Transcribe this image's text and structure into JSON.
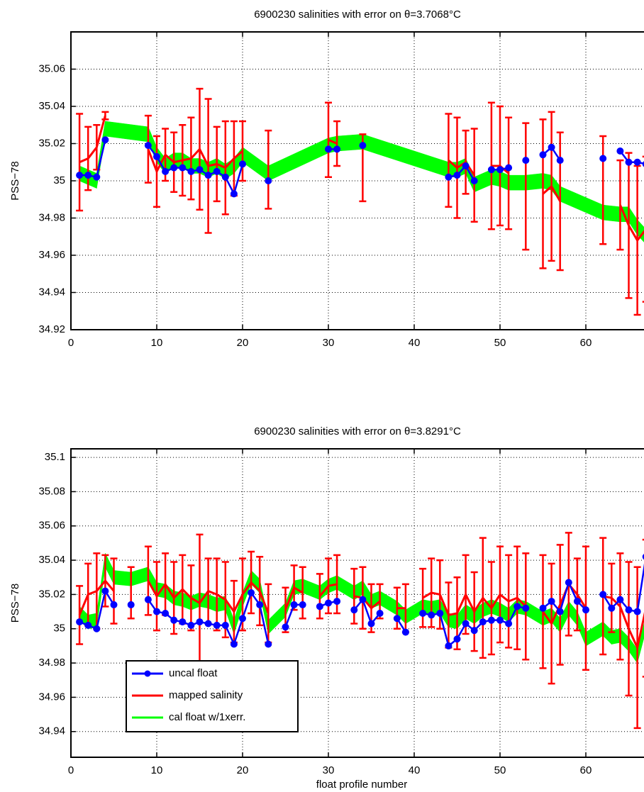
{
  "chart_data": [
    {
      "type": "line",
      "title": "6900230 salinities with error on θ=3.7068°C",
      "ylabel": "PSS−78",
      "x": [
        1,
        2,
        3,
        4,
        5,
        6,
        7,
        8,
        9,
        10,
        11,
        12,
        13,
        14,
        15,
        16,
        17,
        18,
        19,
        20,
        21,
        22,
        23,
        24,
        25,
        26,
        27,
        28,
        29,
        30,
        31,
        32,
        33,
        34,
        35,
        36,
        37,
        38,
        39,
        40,
        41,
        42,
        43,
        44,
        45,
        46,
        47,
        48,
        49,
        50,
        51,
        52,
        53,
        54,
        55,
        56,
        57,
        58,
        59,
        60,
        61,
        62,
        63,
        64,
        65,
        66,
        67
      ],
      "xlim": [
        0,
        70
      ],
      "xticks": [
        0,
        10,
        20,
        30,
        40,
        50,
        60
      ],
      "ylim": [
        34.92,
        35.08
      ],
      "yticks": [
        34.92,
        34.94,
        34.96,
        34.98,
        35,
        35.02,
        35.04,
        35.06
      ],
      "grid": true,
      "series": [
        {
          "style": "line-marker",
          "color": "#0000ff",
          "values": [
            35.003,
            35.003,
            35.002,
            35.022,
            null,
            null,
            null,
            null,
            35.019,
            35.013,
            35.005,
            35.007,
            35.007,
            35.005,
            35.006,
            35.003,
            35.005,
            35.002,
            34.993,
            35.009,
            null,
            null,
            35.0,
            null,
            null,
            null,
            null,
            null,
            null,
            35.017,
            35.017,
            null,
            null,
            35.019,
            null,
            null,
            null,
            null,
            null,
            null,
            null,
            null,
            null,
            35.002,
            35.003,
            35.008,
            35.0,
            null,
            35.006,
            35.006,
            35.007,
            null,
            35.011,
            null,
            35.014,
            35.018,
            35.011,
            null,
            null,
            null,
            null,
            35.012,
            null,
            35.016,
            35.01,
            35.01,
            35.009
          ]
        },
        {
          "style": "errorbar",
          "color": "#ff0000",
          "values": [
            35.01,
            35.012,
            35.018,
            35.035,
            null,
            null,
            null,
            null,
            35.017,
            35.005,
            35.014,
            35.01,
            35.011,
            35.012,
            35.017,
            35.008,
            35.009,
            35.007,
            35.012,
            35.016,
            null,
            null,
            35.006,
            null,
            null,
            null,
            null,
            null,
            null,
            35.022,
            35.02,
            null,
            null,
            35.007,
            null,
            null,
            null,
            null,
            null,
            null,
            null,
            null,
            null,
            35.011,
            35.007,
            35.01,
            35.003,
            null,
            35.008,
            35.008,
            35.004,
            null,
            34.997,
            null,
            34.993,
            34.997,
            34.989,
            null,
            null,
            null,
            null,
            34.995,
            null,
            34.987,
            34.976,
            34.968,
            34.974
          ],
          "errors": [
            0.026,
            0.017,
            0.012,
            0.002,
            null,
            null,
            null,
            null,
            0.018,
            0.019,
            0.014,
            0.016,
            0.019,
            0.022,
            0.0325,
            0.036,
            0.02,
            0.025,
            0.02,
            0.016,
            null,
            null,
            0.021,
            null,
            null,
            null,
            null,
            null,
            null,
            0.02,
            0.012,
            null,
            null,
            0.018,
            null,
            null,
            null,
            null,
            null,
            null,
            null,
            null,
            null,
            0.025,
            0.027,
            0.017,
            0.025,
            null,
            0.034,
            0.032,
            0.03,
            null,
            0.034,
            null,
            0.04,
            0.04,
            0.037,
            null,
            null,
            null,
            null,
            0.029,
            null,
            0.024,
            0.039,
            0.04,
            0.039
          ]
        },
        {
          "style": "band",
          "color": "#00ff00",
          "values": [
            35.004,
            35.002,
            35.0,
            35.028,
            null,
            null,
            null,
            null,
            35.025,
            35.014,
            35.008,
            35.011,
            35.011,
            35.008,
            35.008,
            35.006,
            35.008,
            35.005,
            35.008,
            35.014,
            null,
            null,
            35.004,
            null,
            null,
            null,
            null,
            null,
            null,
            35.019,
            35.02,
            null,
            null,
            35.021,
            null,
            null,
            null,
            null,
            null,
            null,
            null,
            null,
            null,
            35.006,
            35.006,
            35.008,
            34.998,
            null,
            35.002,
            35.001,
            34.999,
            null,
            34.999,
            null,
            35.0,
            34.999,
            34.993,
            null,
            null,
            null,
            null,
            34.983,
            null,
            34.982,
            34.982,
            34.975,
            34.97
          ],
          "errors": [
            0.004,
            0.004,
            0.004,
            0.004,
            null,
            null,
            null,
            null,
            0.004,
            0.004,
            0.004,
            0.004,
            0.004,
            0.004,
            0.004,
            0.004,
            0.004,
            0.004,
            0.004,
            0.004,
            null,
            null,
            0.004,
            null,
            null,
            null,
            null,
            null,
            null,
            0.004,
            0.004,
            null,
            null,
            0.004,
            null,
            null,
            null,
            null,
            null,
            null,
            null,
            null,
            null,
            0.004,
            0.004,
            0.004,
            0.004,
            null,
            0.004,
            0.004,
            0.004,
            null,
            0.004,
            null,
            0.004,
            0.004,
            0.004,
            null,
            null,
            null,
            null,
            0.004,
            null,
            0.004,
            0.004,
            0.004,
            0.004
          ]
        }
      ]
    },
    {
      "type": "line",
      "title": "6900230 salinities with error on θ=3.8291°C",
      "ylabel": "PSS−78",
      "xlabel": "float profile number",
      "x": [
        1,
        2,
        3,
        4,
        5,
        6,
        7,
        8,
        9,
        10,
        11,
        12,
        13,
        14,
        15,
        16,
        17,
        18,
        19,
        20,
        21,
        22,
        23,
        24,
        25,
        26,
        27,
        28,
        29,
        30,
        31,
        32,
        33,
        34,
        35,
        36,
        37,
        38,
        39,
        40,
        41,
        42,
        43,
        44,
        45,
        46,
        47,
        48,
        49,
        50,
        51,
        52,
        53,
        54,
        55,
        56,
        57,
        58,
        59,
        60,
        61,
        62,
        63,
        64,
        65,
        66,
        67
      ],
      "xlim": [
        0,
        70
      ],
      "xticks": [
        0,
        10,
        20,
        30,
        40,
        50,
        60
      ],
      "ylim": [
        34.925,
        35.105
      ],
      "yticks": [
        34.94,
        34.96,
        34.98,
        35,
        35.02,
        35.04,
        35.06,
        35.08,
        35.1
      ],
      "grid": true,
      "legend": "southwest",
      "series": [
        {
          "name": "uncal float",
          "style": "line-marker",
          "color": "#0000ff",
          "values": [
            35.004,
            35.002,
            35.0,
            35.022,
            35.014,
            null,
            35.014,
            null,
            35.017,
            35.01,
            35.009,
            35.005,
            35.004,
            35.002,
            35.004,
            35.003,
            35.002,
            35.002,
            34.991,
            35.006,
            35.021,
            35.014,
            34.991,
            null,
            35.001,
            35.014,
            35.014,
            null,
            35.013,
            35.015,
            35.016,
            null,
            35.011,
            35.017,
            35.003,
            35.009,
            null,
            35.006,
            34.998,
            null,
            35.009,
            35.008,
            35.009,
            34.99,
            34.994,
            35.003,
            34.999,
            35.004,
            35.005,
            35.005,
            35.003,
            35.013,
            35.012,
            null,
            35.012,
            35.016,
            35.01,
            35.027,
            35.016,
            35.011,
            null,
            35.02,
            35.012,
            35.017,
            35.011,
            35.01,
            35.042
          ]
        },
        {
          "name": "mapped salinity",
          "style": "errorbar",
          "color": "#ff0000",
          "values": [
            35.008,
            35.02,
            35.022,
            35.028,
            35.022,
            null,
            35.021,
            null,
            35.028,
            35.019,
            35.026,
            35.018,
            35.023,
            35.018,
            35.015,
            35.022,
            35.02,
            35.017,
            35.01,
            35.02,
            35.027,
            35.022,
            35.009,
            null,
            35.011,
            35.024,
            35.021,
            null,
            35.019,
            35.025,
            35.026,
            null,
            35.019,
            35.018,
            35.012,
            35.016,
            null,
            35.012,
            35.012,
            null,
            35.018,
            35.021,
            35.02,
            35.008,
            35.009,
            35.02,
            35.01,
            35.018,
            35.012,
            35.02,
            35.016,
            35.018,
            35.013,
            null,
            35.01,
            35.003,
            35.014,
            35.026,
            35.02,
            35.012,
            null,
            35.019,
            35.018,
            35.013,
            35.0,
            34.989,
            35.012
          ],
          "errors": [
            0.017,
            0.018,
            0.022,
            0.015,
            0.019,
            null,
            0.015,
            null,
            0.02,
            0.02,
            0.018,
            0.021,
            0.02,
            0.019,
            0.04,
            0.019,
            0.021,
            0.022,
            0.018,
            0.021,
            0.018,
            0.02,
            0.017,
            null,
            0.013,
            0.013,
            0.015,
            null,
            0.013,
            0.016,
            0.017,
            null,
            0.016,
            0.018,
            0.014,
            0.01,
            null,
            0.012,
            0.014,
            null,
            0.017,
            0.02,
            0.02,
            0.019,
            0.021,
            0.023,
            0.023,
            0.035,
            0.027,
            0.028,
            0.027,
            0.03,
            0.031,
            null,
            0.033,
            0.035,
            0.035,
            0.03,
            0.021,
            0.036,
            null,
            0.034,
            0.02,
            0.031,
            0.039,
            0.047,
            0.04
          ]
        },
        {
          "name": "cal float w/1xerr.",
          "style": "band",
          "color": "#00ff00",
          "values": [
            35.009,
            35.004,
            35.005,
            35.04,
            35.03,
            null,
            35.029,
            null,
            35.032,
            35.023,
            35.022,
            35.018,
            35.017,
            35.015,
            35.017,
            35.016,
            35.014,
            35.015,
            35.001,
            35.017,
            35.03,
            35.025,
            35.001,
            null,
            35.011,
            35.024,
            35.025,
            null,
            35.021,
            35.025,
            35.027,
            null,
            35.021,
            35.024,
            35.016,
            35.018,
            null,
            35.012,
            35.007,
            null,
            35.013,
            35.012,
            35.013,
            35.005,
            35.004,
            35.01,
            35.007,
            35.011,
            35.013,
            35.011,
            35.008,
            35.013,
            35.012,
            null,
            35.006,
            35.008,
            35.002,
            35.012,
            35.006,
            34.994,
            null,
            35.0,
            34.995,
            34.996,
            34.991,
            34.984,
            35.003
          ],
          "errors": [
            0.004,
            0.004,
            0.004,
            0.004,
            0.004,
            null,
            0.004,
            null,
            0.004,
            0.004,
            0.004,
            0.004,
            0.004,
            0.004,
            0.004,
            0.004,
            0.004,
            0.004,
            0.004,
            0.004,
            0.004,
            0.004,
            0.004,
            null,
            0.004,
            0.004,
            0.004,
            null,
            0.004,
            0.004,
            0.004,
            null,
            0.004,
            0.004,
            0.004,
            0.004,
            null,
            0.004,
            0.004,
            null,
            0.004,
            0.004,
            0.004,
            0.004,
            0.004,
            0.004,
            0.004,
            0.004,
            0.004,
            0.004,
            0.004,
            0.004,
            0.004,
            null,
            0.004,
            0.004,
            0.004,
            0.004,
            0.004,
            0.004,
            null,
            0.004,
            0.004,
            0.004,
            0.004,
            0.004,
            0.004
          ]
        }
      ]
    }
  ]
}
